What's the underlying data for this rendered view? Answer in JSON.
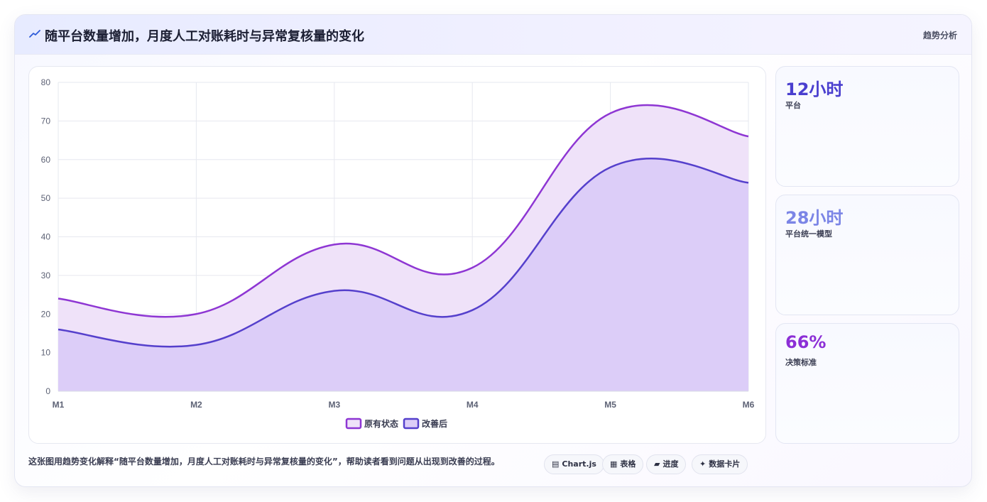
{
  "header": {
    "title": "随平台数量增加，月度人工对账耗时与异常复核量的变化",
    "tag": "趋势分析"
  },
  "stats": [
    {
      "value": "12小时",
      "label": "平台",
      "color": "#4a3fcf"
    },
    {
      "value": "28小时",
      "label": "平台统一模型",
      "color": "#7b85e6"
    },
    {
      "value": "66%",
      "label": "决策标准",
      "color": "#8c2fd6"
    }
  ],
  "footer": {
    "description": "这张图用趋势变化解释“随平台数量增加，月度人工对账耗时与异常复核量的变化”，帮助读者看到问题从出现到改善的过程。",
    "pills": [
      {
        "glyph": "▤",
        "label": "Chart.js"
      },
      {
        "glyph": "▦",
        "label": "表格"
      },
      {
        "glyph": "▰",
        "label": "进度"
      },
      {
        "glyph": "✦",
        "label": "数据卡片"
      }
    ]
  },
  "chart_data": {
    "type": "area",
    "categories": [
      "M1",
      "M2",
      "M3",
      "M4",
      "M5",
      "M6"
    ],
    "ylim": [
      0,
      80
    ],
    "yticks": [
      0,
      10,
      20,
      30,
      40,
      50,
      60,
      70,
      80
    ],
    "grid": true,
    "legend_position": "bottom",
    "series": [
      {
        "name": "原有状态",
        "values": [
          24,
          20,
          38,
          32,
          72,
          66
        ],
        "stroke": "#8e36d3",
        "fill": "#efe2f9"
      },
      {
        "name": "改善后",
        "values": [
          16,
          12,
          26,
          21,
          58,
          54
        ],
        "stroke": "#5540cc",
        "fill": "#dccdf8"
      }
    ]
  }
}
